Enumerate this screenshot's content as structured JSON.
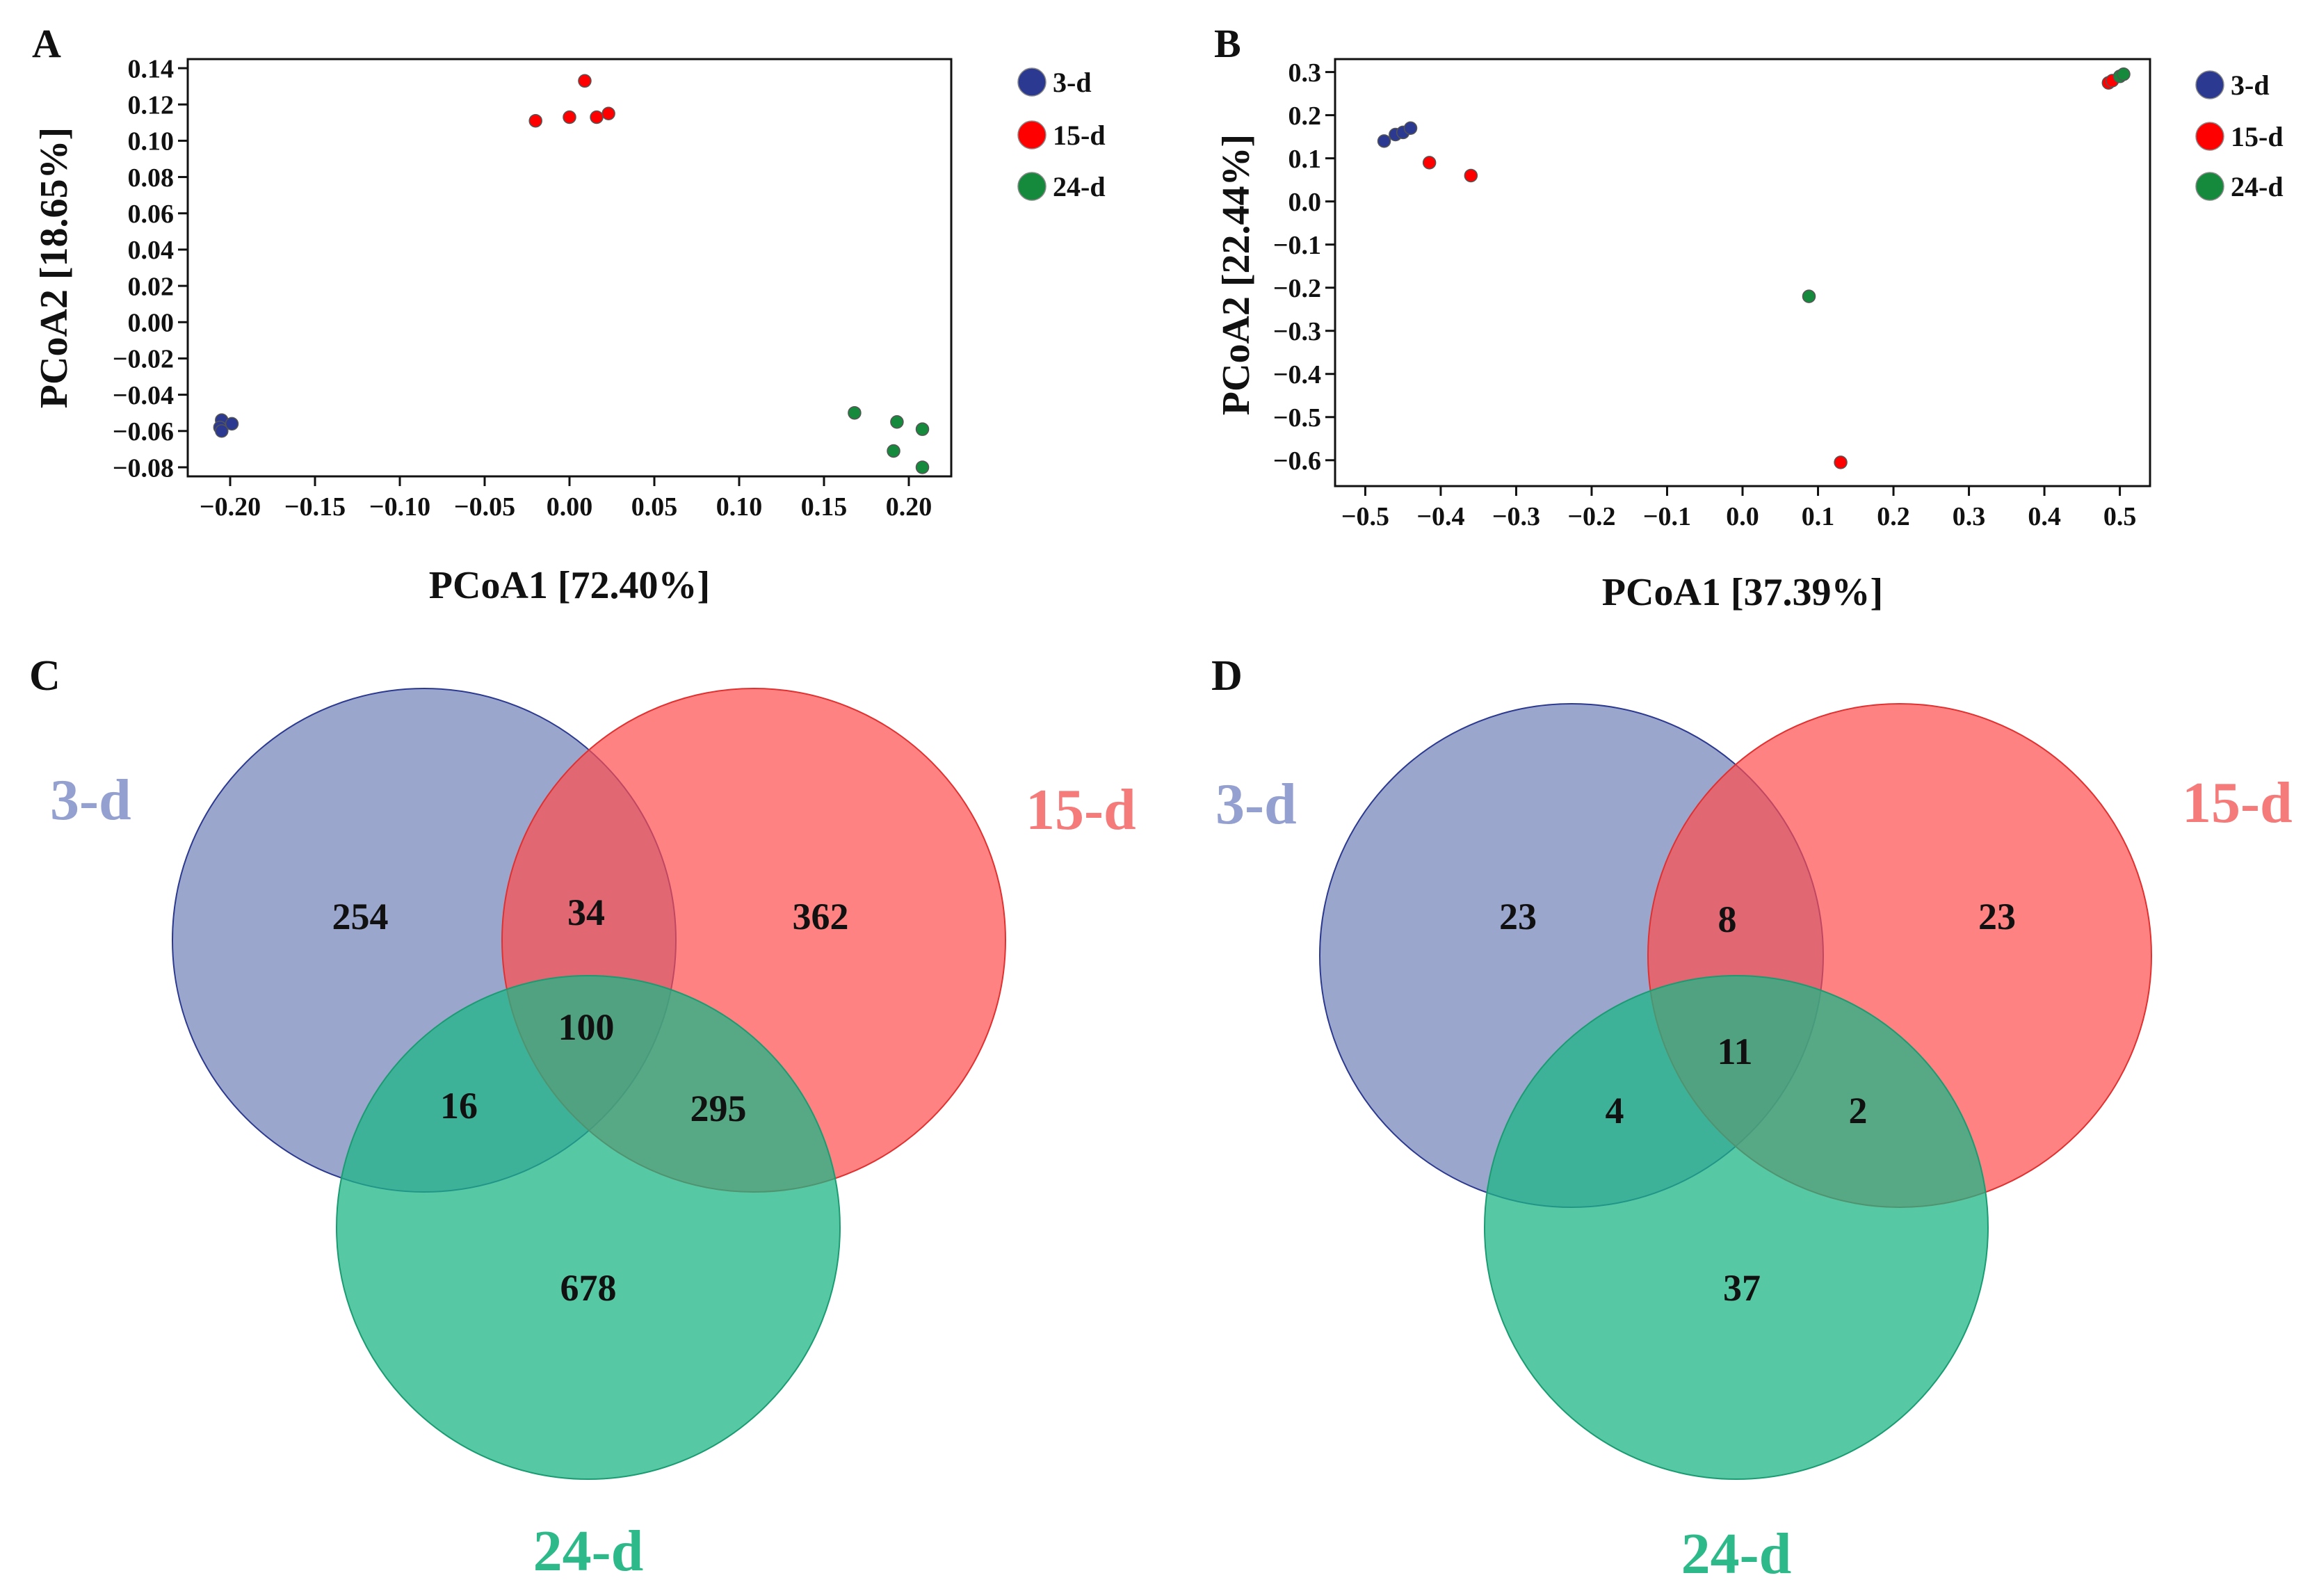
{
  "colors": {
    "d3": "#2b3990",
    "d15": "#ff0000",
    "d24": "#158a3c",
    "venn_d3": "#8a96c4",
    "venn_d15": "#ff5c5c",
    "venn_d24": "#2fbf8e",
    "label_d3": "#94a0cf",
    "label_d15": "#f57a7a",
    "label_d24": "#2db98a"
  },
  "legend": {
    "items": [
      "3-d",
      "15-d",
      "24-d"
    ]
  },
  "chart_data": [
    {
      "panel": "A",
      "type": "scatter",
      "xlabel": "PCoA1 [72.40%]",
      "ylabel": "PCoA2 [18.65%]",
      "xlim": [
        -0.225,
        0.225
      ],
      "ylim": [
        -0.085,
        0.145
      ],
      "xticks": [
        -0.2,
        -0.15,
        -0.1,
        -0.05,
        0.0,
        0.05,
        0.1,
        0.15,
        0.2
      ],
      "xtick_labels": [
        "−0.20",
        "−0.15",
        "−0.10",
        "−0.05",
        "0.00",
        "0.05",
        "0.10",
        "0.15",
        "0.20"
      ],
      "yticks": [
        0.14,
        0.12,
        0.1,
        0.08,
        0.06,
        0.04,
        0.02,
        0.0,
        -0.02,
        -0.04,
        -0.06,
        -0.08
      ],
      "ytick_labels": [
        "0.14",
        "0.12",
        "0.10",
        "0.08",
        "0.06",
        "0.04",
        "0.02",
        "0.00",
        "−0.02",
        "−0.04",
        "−0.06",
        "−0.08"
      ],
      "series": [
        {
          "name": "3-d",
          "color_key": "d3",
          "points": [
            [
              -0.205,
              -0.054
            ],
            [
              -0.199,
              -0.056
            ],
            [
              -0.206,
              -0.058
            ],
            [
              -0.205,
              -0.06
            ]
          ]
        },
        {
          "name": "15-d",
          "color_key": "d15",
          "points": [
            [
              -0.02,
              0.111
            ],
            [
              0.0,
              0.113
            ],
            [
              0.009,
              0.133
            ],
            [
              0.016,
              0.113
            ],
            [
              0.023,
              0.115
            ]
          ]
        },
        {
          "name": "24-d",
          "color_key": "d24",
          "points": [
            [
              0.168,
              -0.05
            ],
            [
              0.193,
              -0.055
            ],
            [
              0.208,
              -0.059
            ],
            [
              0.191,
              -0.071
            ],
            [
              0.208,
              -0.08
            ]
          ]
        }
      ]
    },
    {
      "panel": "B",
      "type": "scatter",
      "xlabel": "PCoA1 [37.39%]",
      "ylabel": "PCoA2 [22.44%]",
      "xlim": [
        -0.54,
        0.54
      ],
      "ylim": [
        -0.66,
        0.33
      ],
      "xticks": [
        -0.5,
        -0.4,
        -0.3,
        -0.2,
        -0.1,
        0.0,
        0.1,
        0.2,
        0.3,
        0.4,
        0.5
      ],
      "xtick_labels": [
        "−0.5",
        "−0.4",
        "−0.3",
        "−0.2",
        "−0.1",
        "0.0",
        "0.1",
        "0.2",
        "0.3",
        "0.4",
        "0.5"
      ],
      "yticks": [
        0.3,
        0.2,
        0.1,
        0.0,
        -0.1,
        -0.2,
        -0.3,
        -0.4,
        -0.5,
        -0.6
      ],
      "ytick_labels": [
        "0.3",
        "0.2",
        "0.1",
        "0.0",
        "−0.1",
        "−0.2",
        "−0.3",
        "−0.4",
        "−0.5",
        "−0.6"
      ],
      "series": [
        {
          "name": "3-d",
          "color_key": "d3",
          "points": [
            [
              -0.475,
              0.14
            ],
            [
              -0.46,
              0.155
            ],
            [
              -0.45,
              0.16
            ],
            [
              -0.44,
              0.17
            ]
          ]
        },
        {
          "name": "15-d",
          "color_key": "d15",
          "points": [
            [
              -0.415,
              0.09
            ],
            [
              -0.36,
              0.06
            ],
            [
              0.13,
              -0.605
            ],
            [
              0.485,
              0.275
            ],
            [
              0.49,
              0.28
            ]
          ]
        },
        {
          "name": "24-d",
          "color_key": "d24",
          "points": [
            [
              0.088,
              -0.22
            ],
            [
              0.5,
              0.29
            ],
            [
              0.505,
              0.295
            ]
          ]
        }
      ]
    },
    {
      "panel": "C",
      "type": "venn",
      "sets": [
        "3-d",
        "15-d",
        "24-d"
      ],
      "regions": {
        "d3_only": "254",
        "d15_only": "362",
        "d24_only": "678",
        "d3_d15": "34",
        "d3_d24": "16",
        "d15_d24": "295",
        "all": "100"
      }
    },
    {
      "panel": "D",
      "type": "venn",
      "sets": [
        "3-d",
        "15-d",
        "24-d"
      ],
      "regions": {
        "d3_only": "23",
        "d15_only": "23",
        "d24_only": "37",
        "d3_d15": "8",
        "d3_d24": "4",
        "d15_d24": "2",
        "all": "11"
      }
    }
  ]
}
